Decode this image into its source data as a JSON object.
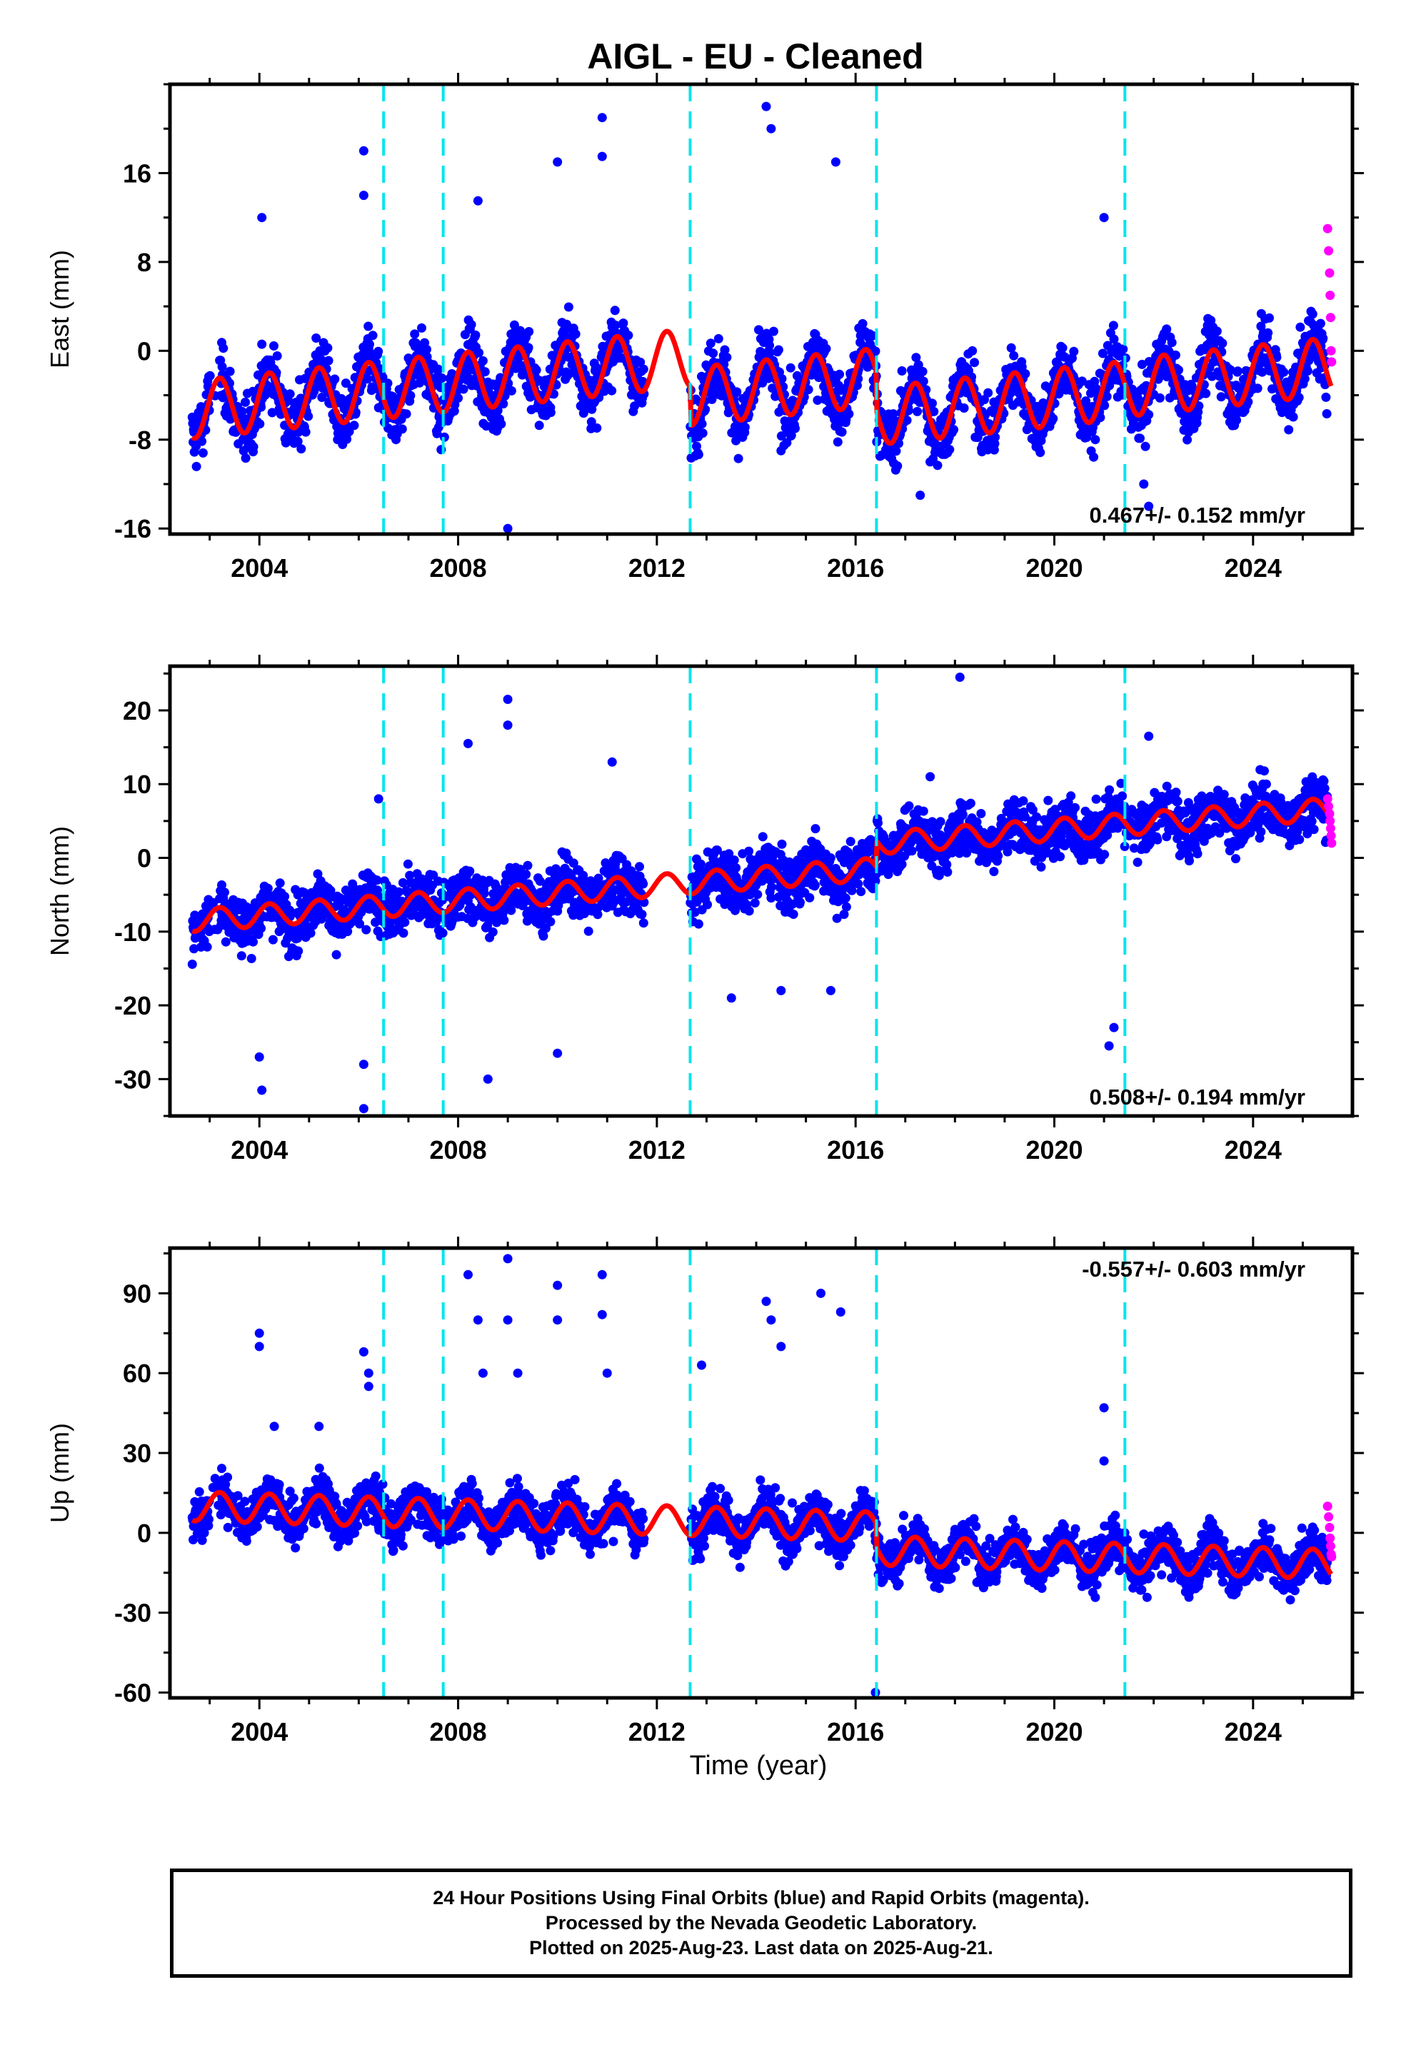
{
  "chart_data": {
    "type": "scatter",
    "title": "AIGL  - EU - Cleaned",
    "xlabel": "Time (year)",
    "x_ticks": [
      2004,
      2008,
      2012,
      2016,
      2020,
      2024
    ],
    "xlim": [
      2002.2,
      2026.0
    ],
    "colors": {
      "final_orbits": "#0000ff",
      "rapid_orbits": "#ff00ff",
      "model": "#ff0000",
      "breaks": "#00e5ee"
    },
    "breaks": [
      2006.5,
      2007.7,
      2012.67,
      2016.42,
      2021.42
    ],
    "grid": false,
    "panels": [
      {
        "ylabel": "East (mm)",
        "ylim": [
          -16.5,
          24.0
        ],
        "y_ticks": [
          -16,
          -8,
          0,
          8,
          16
        ],
        "rate_text": "0.467+/- 0.152 mm/yr",
        "rate_position": "bottom-right",
        "trend": {
          "start": -5.3,
          "rate": 0.467,
          "amp": 2.6,
          "noise": 1.9,
          "offsets": [
            [
              2012.67,
              -3.5
            ],
            [
              2016.42,
              -3.5
            ],
            [
              2021.42,
              0.2
            ]
          ]
        },
        "outliers": [
          [
            2004.05,
            12
          ],
          [
            2006.1,
            18
          ],
          [
            2006.1,
            14
          ],
          [
            2008.4,
            13.5
          ],
          [
            2009.0,
            -16
          ],
          [
            2010.0,
            17
          ],
          [
            2010.9,
            21
          ],
          [
            2010.9,
            17.5
          ],
          [
            2014.2,
            22
          ],
          [
            2014.3,
            20
          ],
          [
            2014.5,
            -9
          ],
          [
            2015.6,
            17
          ],
          [
            2017.3,
            -13
          ],
          [
            2017.5,
            -10
          ],
          [
            2021.0,
            12
          ],
          [
            2021.8,
            -12
          ],
          [
            2021.9,
            -14
          ]
        ],
        "rapid": [
          [
            2025.5,
            11
          ],
          [
            2025.52,
            9
          ],
          [
            2025.54,
            7
          ],
          [
            2025.55,
            5
          ],
          [
            2025.56,
            3
          ],
          [
            2025.57,
            0
          ],
          [
            2025.58,
            -1
          ]
        ]
      },
      {
        "ylabel": "North (mm)",
        "ylim": [
          -35.0,
          26.0
        ],
        "y_ticks": [
          -30,
          -20,
          -10,
          0,
          10,
          20
        ],
        "rate_text": "0.508+/- 0.194 mm/yr",
        "rate_position": "bottom-right",
        "trend": {
          "start": -8.5,
          "rate": 0.508,
          "amp": 1.5,
          "noise": 2.6,
          "offsets": [
            [
              2016.42,
              3.5
            ]
          ]
        },
        "outliers": [
          [
            2004.0,
            -27
          ],
          [
            2004.05,
            -31.5
          ],
          [
            2006.1,
            -34
          ],
          [
            2006.1,
            -28
          ],
          [
            2006.4,
            8
          ],
          [
            2008.2,
            15.5
          ],
          [
            2008.6,
            -30
          ],
          [
            2009.0,
            21.5
          ],
          [
            2009.0,
            18
          ],
          [
            2010.0,
            -26.5
          ],
          [
            2011.1,
            13
          ],
          [
            2013.5,
            -19
          ],
          [
            2014.5,
            -18
          ],
          [
            2015.5,
            -18
          ],
          [
            2018.1,
            24.5
          ],
          [
            2017.5,
            11
          ],
          [
            2021.1,
            -25.5
          ],
          [
            2021.2,
            -23
          ],
          [
            2021.9,
            16.5
          ]
        ],
        "rapid": [
          [
            2025.5,
            8
          ],
          [
            2025.52,
            7
          ],
          [
            2025.54,
            6
          ],
          [
            2025.55,
            5
          ],
          [
            2025.56,
            4
          ],
          [
            2025.57,
            3
          ],
          [
            2025.58,
            2
          ]
        ]
      },
      {
        "ylabel": "Up (mm)",
        "ylim": [
          -62.0,
          107.0
        ],
        "y_ticks": [
          -60,
          -30,
          0,
          30,
          60,
          90
        ],
        "rate_text": "-0.557+/- 0.603 mm/yr",
        "rate_position": "top-right",
        "trend": {
          "start": 10.0,
          "rate": -0.557,
          "amp": 5.5,
          "noise": 6.0,
          "offsets": [
            [
              2016.42,
              -9.0
            ]
          ]
        },
        "outliers": [
          [
            2004.0,
            75
          ],
          [
            2004.0,
            70
          ],
          [
            2004.3,
            40
          ],
          [
            2005.2,
            40
          ],
          [
            2006.1,
            68
          ],
          [
            2006.2,
            60
          ],
          [
            2006.2,
            55
          ],
          [
            2008.2,
            97
          ],
          [
            2008.4,
            80
          ],
          [
            2008.5,
            60
          ],
          [
            2009.0,
            103
          ],
          [
            2009.0,
            80
          ],
          [
            2009.2,
            60
          ],
          [
            2010.0,
            93
          ],
          [
            2010.0,
            80
          ],
          [
            2010.9,
            97
          ],
          [
            2010.9,
            82
          ],
          [
            2011.0,
            60
          ],
          [
            2012.9,
            63
          ],
          [
            2014.2,
            87
          ],
          [
            2014.3,
            80
          ],
          [
            2014.5,
            70
          ],
          [
            2015.3,
            90
          ],
          [
            2015.7,
            83
          ],
          [
            2016.4,
            -60
          ],
          [
            2021.0,
            47
          ],
          [
            2021.0,
            27
          ]
        ],
        "rapid": [
          [
            2025.5,
            10
          ],
          [
            2025.52,
            6
          ],
          [
            2025.54,
            2
          ],
          [
            2025.55,
            -2
          ],
          [
            2025.56,
            -5
          ],
          [
            2025.57,
            -8
          ],
          [
            2025.58,
            -9
          ]
        ]
      }
    ]
  },
  "footer": {
    "line1": "24 Hour Positions Using Final Orbits (blue) and Rapid Orbits (magenta).",
    "line2": "Processed by the Nevada Geodetic Laboratory.",
    "line3": "Plotted on 2025-Aug-23. Last data on 2025-Aug-21."
  }
}
